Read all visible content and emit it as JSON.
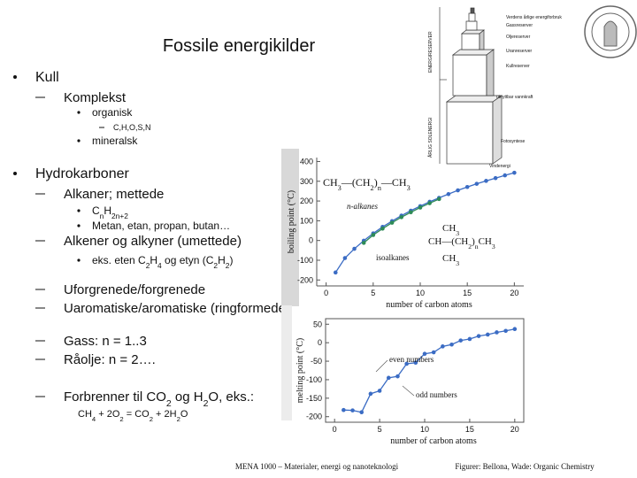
{
  "title": "Fossile energikilder",
  "outline": [
    {
      "text": "Kull",
      "children": [
        {
          "text": "Komplekst",
          "children": [
            {
              "text": "organisk",
              "children": [
                {
                  "text": "C,H,O,S,N"
                }
              ]
            },
            {
              "text": "mineralsk"
            }
          ]
        }
      ]
    },
    {
      "text": "Hydrokarboner",
      "children": [
        {
          "text": "Alkaner; mettede",
          "children": [
            {
              "parts": [
                "C",
                "n",
                "H",
                "2n+2"
              ]
            },
            {
              "text": "Metan, etan, propan, butan…"
            }
          ]
        },
        {
          "text": "Alkener og alkyner (umettede)",
          "children": [
            {
              "parts": [
                "eks. eten C",
                "2",
                "H",
                "4",
                " og etyn (C",
                "2",
                "H",
                "2",
                ")"
              ]
            }
          ]
        },
        {
          "text": "Uforgrenede/forgrenede"
        },
        {
          "text": "Uaromatiske/aromatiske (ringformede)"
        },
        {
          "text": "Gass: n = 1..3"
        },
        {
          "text": "Råolje: n = 2…."
        },
        {
          "parts": [
            "Forbrenner til CO",
            "2",
            " og H",
            "2",
            "O, eks.:"
          ],
          "children": [
            {
              "parts": [
                "CH",
                "4",
                " + 2O",
                "2",
                " = CO",
                "2",
                " + 2H",
                "2",
                "O"
              ]
            }
          ]
        }
      ]
    }
  ],
  "energy_figure": {
    "axis_labels": [
      "ENERGIRESERVER",
      "ÅRLIG SOLENERGI"
    ],
    "labels": [
      "Verdens årlige energiforbruk",
      "Gassreserver",
      "Oljereserver",
      "Uranreserver",
      "Kullreserver",
      "utnyttbar vannkraft",
      "Fotosyntese",
      "Vindenergi"
    ]
  },
  "footer": {
    "course": "MENA 1000 – Materialer, energi og nanoteknologi",
    "credits": "Figurer: Bellona, Wade: Organic Chemistry"
  },
  "chart_data": [
    {
      "type": "line",
      "y_label": "boiling point (°C)",
      "x_label": "number of carbon atoms",
      "xlim": [
        -1,
        21
      ],
      "ylim": [
        -230,
        420
      ],
      "xticks": [
        0,
        5,
        10,
        15,
        20
      ],
      "yticks": [
        -200,
        -100,
        0,
        100,
        200,
        300,
        400
      ],
      "formula_parts": [
        "CH",
        "3",
        "—(CH",
        "2",
        ")",
        "n",
        "—CH",
        "3"
      ],
      "iso_formula": [
        [
          "CH",
          "3"
        ],
        [
          "CH—(CH",
          "2",
          ")",
          "n",
          "CH",
          "3"
        ],
        [
          "CH",
          "3"
        ]
      ],
      "series": [
        {
          "name": "n-alkanes",
          "color": "#3b6cc4",
          "x": [
            1,
            2,
            3,
            4,
            5,
            6,
            7,
            8,
            9,
            10,
            11,
            12,
            13,
            14,
            15,
            16,
            17,
            18,
            19,
            20
          ],
          "values": [
            -162,
            -89,
            -42,
            -1,
            36,
            69,
            98,
            126,
            151,
            174,
            196,
            216,
            235,
            254,
            271,
            287,
            302,
            316,
            330,
            343
          ]
        },
        {
          "name": "isoalkanes",
          "color": "#2e8b57",
          "x": [
            4,
            5,
            6,
            7,
            8,
            9,
            10,
            11,
            12
          ],
          "values": [
            -12,
            28,
            60,
            90,
            118,
            143,
            167,
            189,
            210
          ]
        }
      ]
    },
    {
      "type": "line",
      "y_label": "melting point (°C)",
      "x_label": "number of carbon atoms",
      "xlim": [
        -1,
        21
      ],
      "ylim": [
        -215,
        65
      ],
      "xticks": [
        0,
        5,
        10,
        15,
        20
      ],
      "yticks": [
        -200,
        -150,
        -100,
        -50,
        0,
        50
      ],
      "annotations": [
        "even numbers",
        "odd numbers"
      ],
      "color": "#3b6cc4",
      "x": [
        1,
        2,
        3,
        4,
        5,
        6,
        7,
        8,
        9,
        10,
        11,
        12,
        13,
        14,
        15,
        16,
        17,
        18,
        19,
        20
      ],
      "values": [
        -182,
        -183,
        -188,
        -138,
        -130,
        -95,
        -91,
        -57,
        -54,
        -30,
        -26,
        -10,
        -5,
        6,
        10,
        18,
        22,
        28,
        32,
        37
      ]
    }
  ]
}
